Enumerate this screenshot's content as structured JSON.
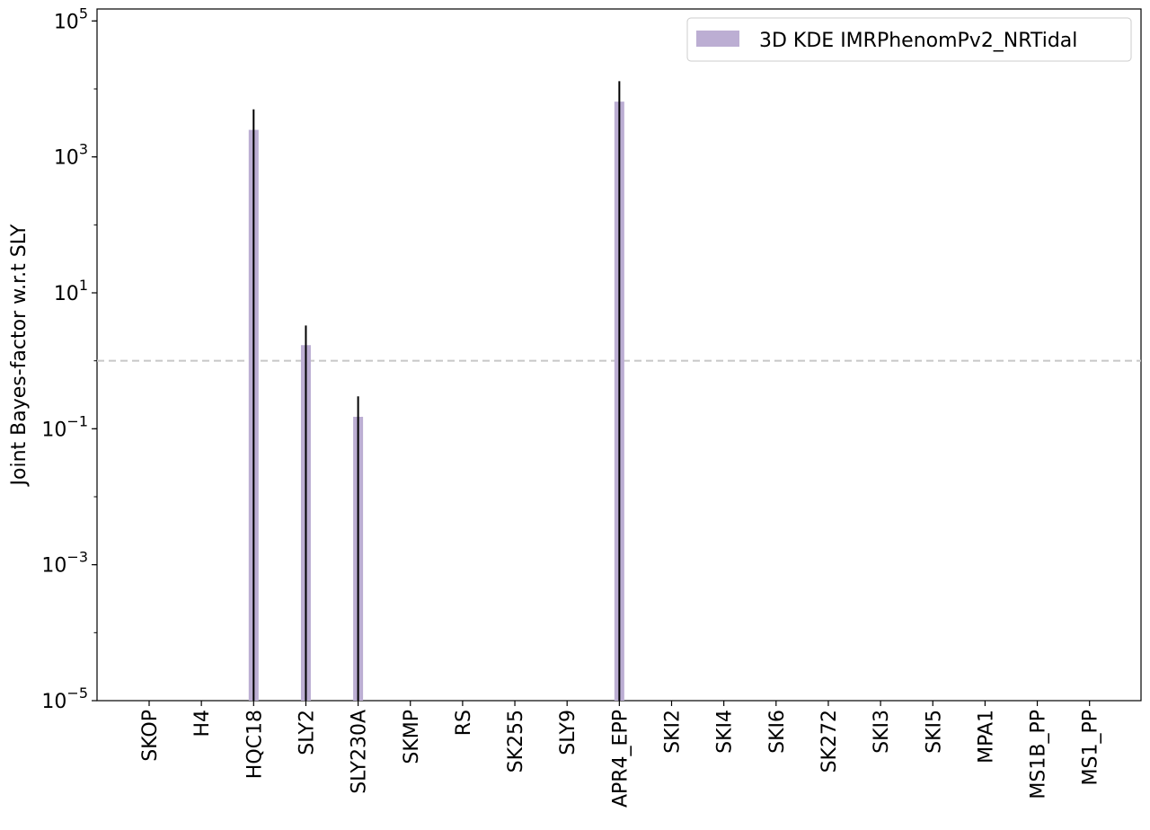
{
  "chart_data": {
    "type": "bar",
    "ylabel": "Joint Bayes-factor w.r.t SLY",
    "xlabel": "",
    "yscale": "log",
    "ylim": [
      1e-05,
      150000
    ],
    "yticks": [
      {
        "base": "10",
        "exp": "5",
        "value": 100000
      },
      {
        "base": "10",
        "exp": "3",
        "value": 1000
      },
      {
        "base": "10",
        "exp": "1",
        "value": 10
      },
      {
        "base": "10",
        "exp": "−1",
        "value": 0.1
      },
      {
        "base": "10",
        "exp": "−3",
        "value": 0.001
      },
      {
        "base": "10",
        "exp": "−5",
        "value": 1e-05
      }
    ],
    "categories": [
      "SKOP",
      "H4",
      "HQC18",
      "SLY2",
      "SLY230A",
      "SKMP",
      "RS",
      "SK255",
      "SLY9",
      "APR4_EPP",
      "SKI2",
      "SKI4",
      "SKI6",
      "SK272",
      "SKI3",
      "SKI5",
      "MPA1",
      "MS1B_PP",
      "MS1_PP"
    ],
    "series": [
      {
        "name": "3D KDE IMRPhenomPv2_NRTidal",
        "color": "#bcaed3",
        "values": [
          0,
          0,
          2500,
          1.7,
          0.15,
          0,
          0,
          0,
          0,
          6500,
          0,
          0,
          0,
          0,
          0,
          0,
          0,
          0,
          0
        ],
        "error_upper": [
          0,
          0,
          5000,
          3.3,
          0.3,
          0,
          0,
          0,
          0,
          13000,
          0,
          0,
          0,
          0,
          0,
          0,
          0,
          0,
          0
        ]
      }
    ],
    "reference_line": {
      "value": 1,
      "style": "dashed",
      "color": "#c7c7c7"
    },
    "legend": {
      "placement": "top-right"
    },
    "grid": false
  }
}
